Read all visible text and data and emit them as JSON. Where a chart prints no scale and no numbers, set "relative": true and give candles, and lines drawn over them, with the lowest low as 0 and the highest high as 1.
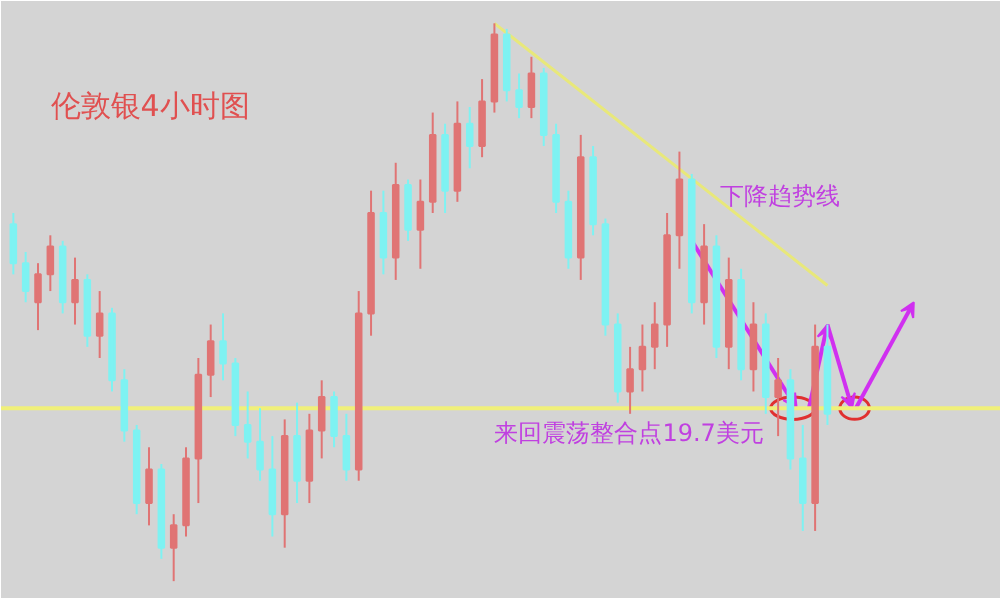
{
  "chart_data": {
    "type": "candlestick",
    "title": "伦敦银4小时图",
    "relative": true,
    "categories": [
      null,
      null,
      null,
      null,
      null,
      null,
      null,
      null,
      null,
      null,
      null,
      null,
      null,
      null,
      null,
      null,
      null,
      null,
      null,
      null,
      null,
      null,
      null,
      null,
      null,
      null,
      null,
      null,
      null,
      null,
      null,
      null,
      null,
      null,
      null,
      null,
      null,
      null,
      null,
      null,
      null,
      null,
      null,
      null,
      null,
      null,
      null,
      null,
      null,
      null,
      null,
      null,
      null,
      null,
      null,
      null,
      null,
      null,
      null,
      null,
      null,
      null,
      null,
      null,
      null,
      null,
      null
    ],
    "ohlc": [
      [
        0.64,
        0.66,
        0.55,
        0.57
      ],
      [
        0.57,
        0.59,
        0.5,
        0.52
      ],
      [
        0.5,
        0.57,
        0.45,
        0.55
      ],
      [
        0.55,
        0.62,
        0.52,
        0.6
      ],
      [
        0.6,
        0.61,
        0.48,
        0.5
      ],
      [
        0.5,
        0.58,
        0.46,
        0.54
      ],
      [
        0.54,
        0.55,
        0.42,
        0.44
      ],
      [
        0.44,
        0.52,
        0.4,
        0.48
      ],
      [
        0.48,
        0.49,
        0.34,
        0.36
      ],
      [
        0.36,
        0.38,
        0.25,
        0.27
      ],
      [
        0.27,
        0.28,
        0.12,
        0.14
      ],
      [
        0.14,
        0.24,
        0.1,
        0.2
      ],
      [
        0.2,
        0.21,
        0.04,
        0.06
      ],
      [
        0.06,
        0.12,
        0.0,
        0.1
      ],
      [
        0.1,
        0.24,
        0.08,
        0.22
      ],
      [
        0.22,
        0.4,
        0.14,
        0.37
      ],
      [
        0.37,
        0.46,
        0.33,
        0.43
      ],
      [
        0.43,
        0.48,
        0.36,
        0.39
      ],
      [
        0.39,
        0.4,
        0.26,
        0.28
      ],
      [
        0.28,
        0.34,
        0.22,
        0.25
      ],
      [
        0.25,
        0.31,
        0.18,
        0.2
      ],
      [
        0.2,
        0.26,
        0.08,
        0.12
      ],
      [
        0.12,
        0.29,
        0.06,
        0.26
      ],
      [
        0.26,
        0.32,
        0.14,
        0.18
      ],
      [
        0.18,
        0.3,
        0.14,
        0.27
      ],
      [
        0.27,
        0.36,
        0.22,
        0.33
      ],
      [
        0.33,
        0.34,
        0.24,
        0.26
      ],
      [
        0.26,
        0.3,
        0.18,
        0.2
      ],
      [
        0.2,
        0.52,
        0.18,
        0.48
      ],
      [
        0.48,
        0.7,
        0.44,
        0.66
      ],
      [
        0.66,
        0.7,
        0.55,
        0.58
      ],
      [
        0.58,
        0.75,
        0.54,
        0.71
      ],
      [
        0.71,
        0.72,
        0.61,
        0.63
      ],
      [
        0.63,
        0.72,
        0.56,
        0.68
      ],
      [
        0.68,
        0.84,
        0.66,
        0.8
      ],
      [
        0.8,
        0.82,
        0.66,
        0.7
      ],
      [
        0.7,
        0.86,
        0.68,
        0.82
      ],
      [
        0.82,
        0.85,
        0.74,
        0.78
      ],
      [
        0.78,
        0.9,
        0.76,
        0.86
      ],
      [
        0.86,
        1.0,
        0.84,
        0.98
      ],
      [
        0.98,
        0.99,
        0.86,
        0.88
      ],
      [
        0.88,
        0.91,
        0.83,
        0.85
      ],
      [
        0.85,
        0.94,
        0.83,
        0.91
      ],
      [
        0.91,
        0.92,
        0.78,
        0.8
      ],
      [
        0.8,
        0.82,
        0.66,
        0.68
      ],
      [
        0.68,
        0.7,
        0.56,
        0.58
      ],
      [
        0.58,
        0.8,
        0.54,
        0.76
      ],
      [
        0.76,
        0.78,
        0.62,
        0.64
      ],
      [
        0.64,
        0.65,
        0.44,
        0.46
      ],
      [
        0.46,
        0.48,
        0.32,
        0.34
      ],
      [
        0.34,
        0.42,
        0.3,
        0.38
      ],
      [
        0.38,
        0.46,
        0.34,
        0.42
      ],
      [
        0.42,
        0.5,
        0.38,
        0.46
      ],
      [
        0.46,
        0.66,
        0.42,
        0.62
      ],
      [
        0.62,
        0.77,
        0.56,
        0.72
      ],
      [
        0.72,
        0.73,
        0.48,
        0.5
      ],
      [
        0.5,
        0.64,
        0.46,
        0.6
      ],
      [
        0.6,
        0.62,
        0.4,
        0.42
      ],
      [
        0.42,
        0.58,
        0.38,
        0.54
      ],
      [
        0.54,
        0.56,
        0.36,
        0.38
      ],
      [
        0.38,
        0.5,
        0.34,
        0.46
      ],
      [
        0.46,
        0.48,
        0.3,
        0.33
      ],
      [
        0.33,
        0.4,
        0.26,
        0.36
      ],
      [
        0.36,
        0.38,
        0.2,
        0.22
      ],
      [
        0.22,
        0.28,
        0.09,
        0.14
      ],
      [
        0.14,
        0.46,
        0.09,
        0.42
      ],
      [
        0.42,
        0.46,
        0.28,
        0.3
      ]
    ],
    "colors": [
      "#7ef2f2",
      "#7ef2f2",
      "#e07474",
      "#e07474",
      "#7ef2f2",
      "#e07474",
      "#7ef2f2",
      "#e07474",
      "#7ef2f2",
      "#7ef2f2",
      "#7ef2f2",
      "#e07474",
      "#7ef2f2",
      "#e07474",
      "#e07474",
      "#e07474",
      "#e07474",
      "#7ef2f2",
      "#7ef2f2",
      "#7ef2f2",
      "#7ef2f2",
      "#7ef2f2",
      "#e07474",
      "#7ef2f2",
      "#e07474",
      "#e07474",
      "#7ef2f2",
      "#7ef2f2",
      "#e07474",
      "#e07474",
      "#7ef2f2",
      "#e07474",
      "#7ef2f2",
      "#e07474",
      "#e07474",
      "#7ef2f2",
      "#e07474",
      "#7ef2f2",
      "#e07474",
      "#e07474",
      "#7ef2f2",
      "#7ef2f2",
      "#e07474",
      "#7ef2f2",
      "#7ef2f2",
      "#7ef2f2",
      "#e07474",
      "#7ef2f2",
      "#7ef2f2",
      "#7ef2f2",
      "#e07474",
      "#e07474",
      "#e07474",
      "#e07474",
      "#e07474",
      "#7ef2f2",
      "#e07474",
      "#7ef2f2",
      "#e07474",
      "#7ef2f2",
      "#e07474",
      "#7ef2f2",
      "#e07474",
      "#7ef2f2",
      "#7ef2f2",
      "#e07474",
      "#7ef2f2"
    ],
    "series": [
      {
        "type": "line",
        "color": "#e8e87a",
        "values": [
          null,
          null,
          null,
          null,
          null,
          null,
          null,
          null,
          null,
          null,
          null,
          null,
          null,
          null,
          null,
          null,
          null,
          null,
          null,
          null,
          null,
          null,
          null,
          null,
          null,
          null,
          null,
          null,
          null,
          null,
          null,
          null,
          null,
          null,
          null,
          null,
          null,
          null,
          null,
          1.0,
          null,
          null,
          null,
          null,
          null,
          null,
          null,
          null,
          null,
          null,
          null,
          null,
          null,
          null,
          null,
          null,
          null,
          null,
          null,
          null,
          null,
          null,
          null,
          null,
          null,
          null,
          0.53
        ]
      }
    ],
    "ref_lines": [
      {
        "axis": "y",
        "value": 0.31,
        "label": "来回震荡整合点19.7美元",
        "color": "#f0f07a"
      }
    ],
    "annotations": [
      "下降趋势线"
    ]
  }
}
